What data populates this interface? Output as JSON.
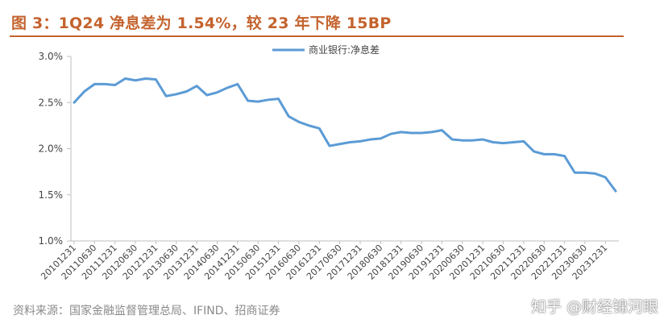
{
  "figure": {
    "title": "图 3：1Q24 净息差为 1.54%，较 23 年下降 15BP",
    "source": "资料来源：国家金融监督管理总局、IFIND、招商证券",
    "watermark": "知乎 @财经锦河眼"
  },
  "colors": {
    "title": "#c4632e",
    "series": "#5b9bd5",
    "axis": "#bfbfbf"
  },
  "chart_data": {
    "type": "line",
    "xlabel": "",
    "ylabel": "",
    "ylim": [
      0.01,
      0.03
    ],
    "yticks": [
      0.03,
      0.025,
      0.02,
      0.015,
      0.01
    ],
    "ytick_labels": [
      "3.0%",
      "2.5%",
      "2.0%",
      "1.5%",
      "1.0%"
    ],
    "grid": false,
    "legend": "top-center",
    "x": [
      "20101231",
      "20110331",
      "20110630",
      "20110930",
      "20111231",
      "20120331",
      "20120630",
      "20120930",
      "20121231",
      "20130331",
      "20130630",
      "20130930",
      "20131231",
      "20140331",
      "20140630",
      "20140930",
      "20141231",
      "20150331",
      "20150630",
      "20150930",
      "20151231",
      "20160331",
      "20160630",
      "20160930",
      "20161231",
      "20170331",
      "20170630",
      "20170930",
      "20171231",
      "20180331",
      "20180630",
      "20180930",
      "20181231",
      "20190331",
      "20190630",
      "20190930",
      "20191231",
      "20200331",
      "20200630",
      "20200930",
      "20201231",
      "20210331",
      "20210630",
      "20210930",
      "20211231",
      "20220331",
      "20220630",
      "20220930",
      "20221231",
      "20230331",
      "20230630",
      "20230930",
      "20231231",
      "20240331"
    ],
    "xtick_labels": [
      "20101231",
      "20110630",
      "20111231",
      "20120630",
      "20121231",
      "20130630",
      "20131231",
      "20140630",
      "20141231",
      "20150630",
      "20151231",
      "20160630",
      "20161231",
      "20170630",
      "20171231",
      "20180630",
      "20181231",
      "20190630",
      "20191231",
      "20200630",
      "20201231",
      "20210630",
      "20211231",
      "20220630",
      "20221231",
      "20230630",
      "20231231"
    ],
    "series": [
      {
        "name": "商业银行:净息差",
        "values": [
          0.025,
          0.0262,
          0.027,
          0.027,
          0.0269,
          0.0276,
          0.0274,
          0.0276,
          0.0275,
          0.0257,
          0.0259,
          0.0262,
          0.0268,
          0.0258,
          0.0261,
          0.0266,
          0.027,
          0.0252,
          0.0251,
          0.0253,
          0.0254,
          0.0235,
          0.0229,
          0.0225,
          0.0222,
          0.0203,
          0.0205,
          0.0207,
          0.0208,
          0.021,
          0.0211,
          0.0216,
          0.0218,
          0.0217,
          0.0217,
          0.0218,
          0.022,
          0.021,
          0.0209,
          0.0209,
          0.021,
          0.0207,
          0.0206,
          0.0207,
          0.0208,
          0.0197,
          0.0194,
          0.0194,
          0.0192,
          0.0174,
          0.0174,
          0.0173,
          0.0169,
          0.0154
        ]
      }
    ]
  }
}
